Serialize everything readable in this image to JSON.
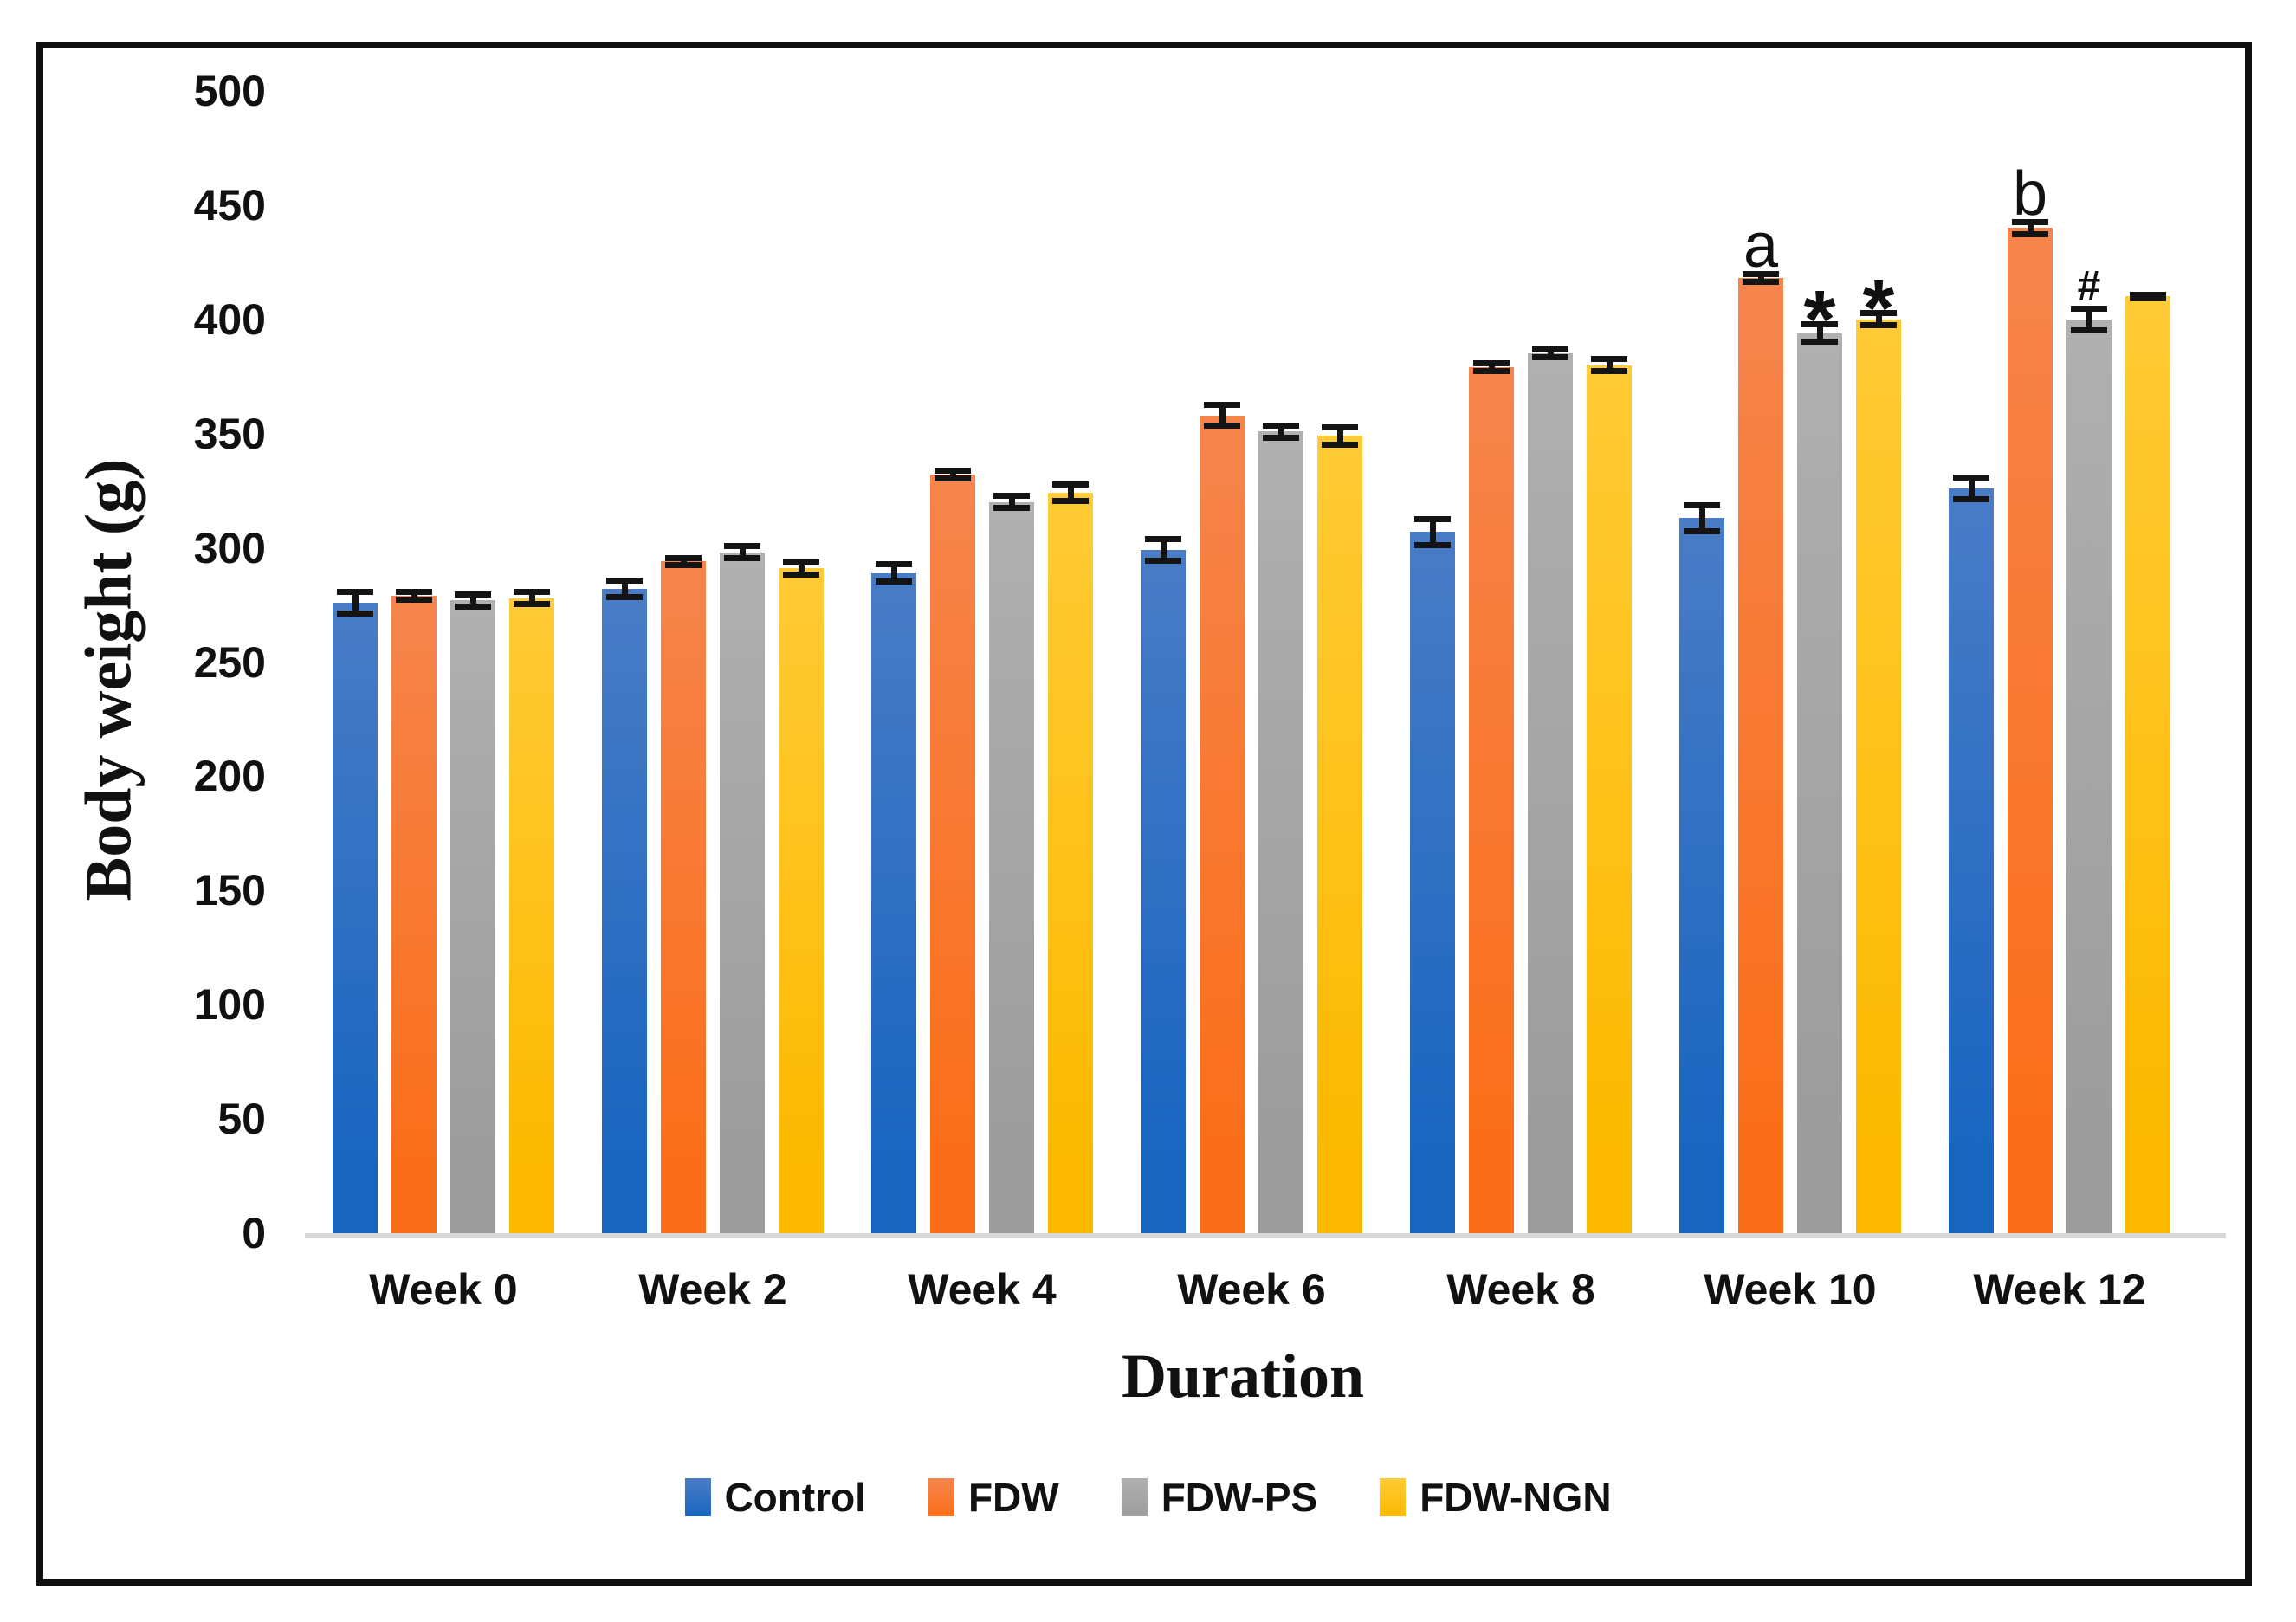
{
  "figure": {
    "border_color": "#0f0f0f",
    "background": "#ffffff",
    "axis_line_color": "#d8d8d8",
    "error_bar_color": "#141414"
  },
  "chart_data": {
    "type": "bar",
    "title": "",
    "xlabel": "Duration",
    "ylabel": "Body weight (g)",
    "ylim": [
      0,
      500
    ],
    "ytick_step": 50,
    "yticks": [
      "0",
      "50",
      "100",
      "150",
      "200",
      "250",
      "300",
      "350",
      "400",
      "450",
      "500"
    ],
    "grid": false,
    "legend_position": "bottom",
    "categories": [
      "Week 0",
      "Week 2",
      "Week 4",
      "Week 6",
      "Week 8",
      "Week 10",
      "Week 12"
    ],
    "series": [
      {
        "name": "Control",
        "fill_top": "#4a7cc6",
        "fill_bottom": "#1865c0",
        "values": [
          276,
          282,
          289,
          299,
          307,
          313,
          326
        ],
        "errors": [
          6,
          5,
          5,
          6,
          7,
          7,
          6
        ],
        "annotations": [
          null,
          null,
          null,
          null,
          null,
          null,
          null
        ]
      },
      {
        "name": "FDW",
        "fill_top": "#f6854d",
        "fill_bottom": "#fa6e19",
        "values": [
          279,
          294,
          332,
          358,
          379,
          418,
          440
        ],
        "errors": [
          3,
          3,
          3,
          6,
          3,
          3,
          4
        ],
        "annotations": [
          null,
          null,
          null,
          null,
          null,
          "a",
          "b"
        ]
      },
      {
        "name": "FDW-PS",
        "fill_top": "#b0b0b0",
        "fill_bottom": "#9c9c9c",
        "values": [
          277,
          298,
          320,
          351,
          385,
          394,
          400
        ],
        "errors": [
          4,
          4,
          4,
          4,
          3,
          5,
          6
        ],
        "annotations": [
          null,
          null,
          null,
          null,
          null,
          "*",
          "#"
        ]
      },
      {
        "name": "FDW-NGN",
        "fill_top": "#ffcb36",
        "fill_bottom": "#fcb900",
        "values": [
          278,
          291,
          324,
          349,
          380,
          400,
          410
        ],
        "errors": [
          4,
          4,
          5,
          5,
          4,
          4,
          2
        ],
        "annotations": [
          null,
          null,
          null,
          null,
          null,
          "*",
          null
        ]
      }
    ]
  }
}
